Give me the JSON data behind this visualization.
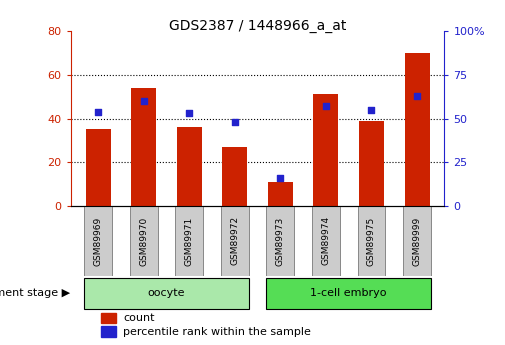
{
  "title": "GDS2387 / 1448966_a_at",
  "categories": [
    "GSM89969",
    "GSM89970",
    "GSM89971",
    "GSM89972",
    "GSM89973",
    "GSM89974",
    "GSM89975",
    "GSM89999"
  ],
  "counts": [
    35,
    54,
    36,
    27,
    11,
    51,
    39,
    70
  ],
  "percentiles": [
    54,
    60,
    53,
    48,
    16,
    57,
    55,
    63
  ],
  "bar_color": "#cc2200",
  "dot_color": "#2222cc",
  "left_ylim": [
    0,
    80
  ],
  "right_ylim": [
    0,
    100
  ],
  "left_yticks": [
    0,
    20,
    40,
    60,
    80
  ],
  "right_yticks": [
    0,
    25,
    50,
    75,
    100
  ],
  "right_yticklabels": [
    "0",
    "25",
    "50",
    "75",
    "100%"
  ],
  "groups": [
    {
      "label": "oocyte",
      "indices": [
        0,
        1,
        2,
        3
      ],
      "color": "#aae8aa"
    },
    {
      "label": "1-cell embryo",
      "indices": [
        4,
        5,
        6,
        7
      ],
      "color": "#55dd55"
    }
  ],
  "group_label_prefix": "development stage",
  "legend_count_label": "count",
  "legend_pct_label": "percentile rank within the sample",
  "background_color": "#ffffff",
  "plot_bg_color": "#ffffff",
  "tick_label_color_left": "#cc2200",
  "tick_label_color_right": "#2222cc",
  "grid_color": "#000000",
  "bar_width": 0.55,
  "xlabel_box_color": "#cccccc",
  "xlabel_box_border": "#888888"
}
